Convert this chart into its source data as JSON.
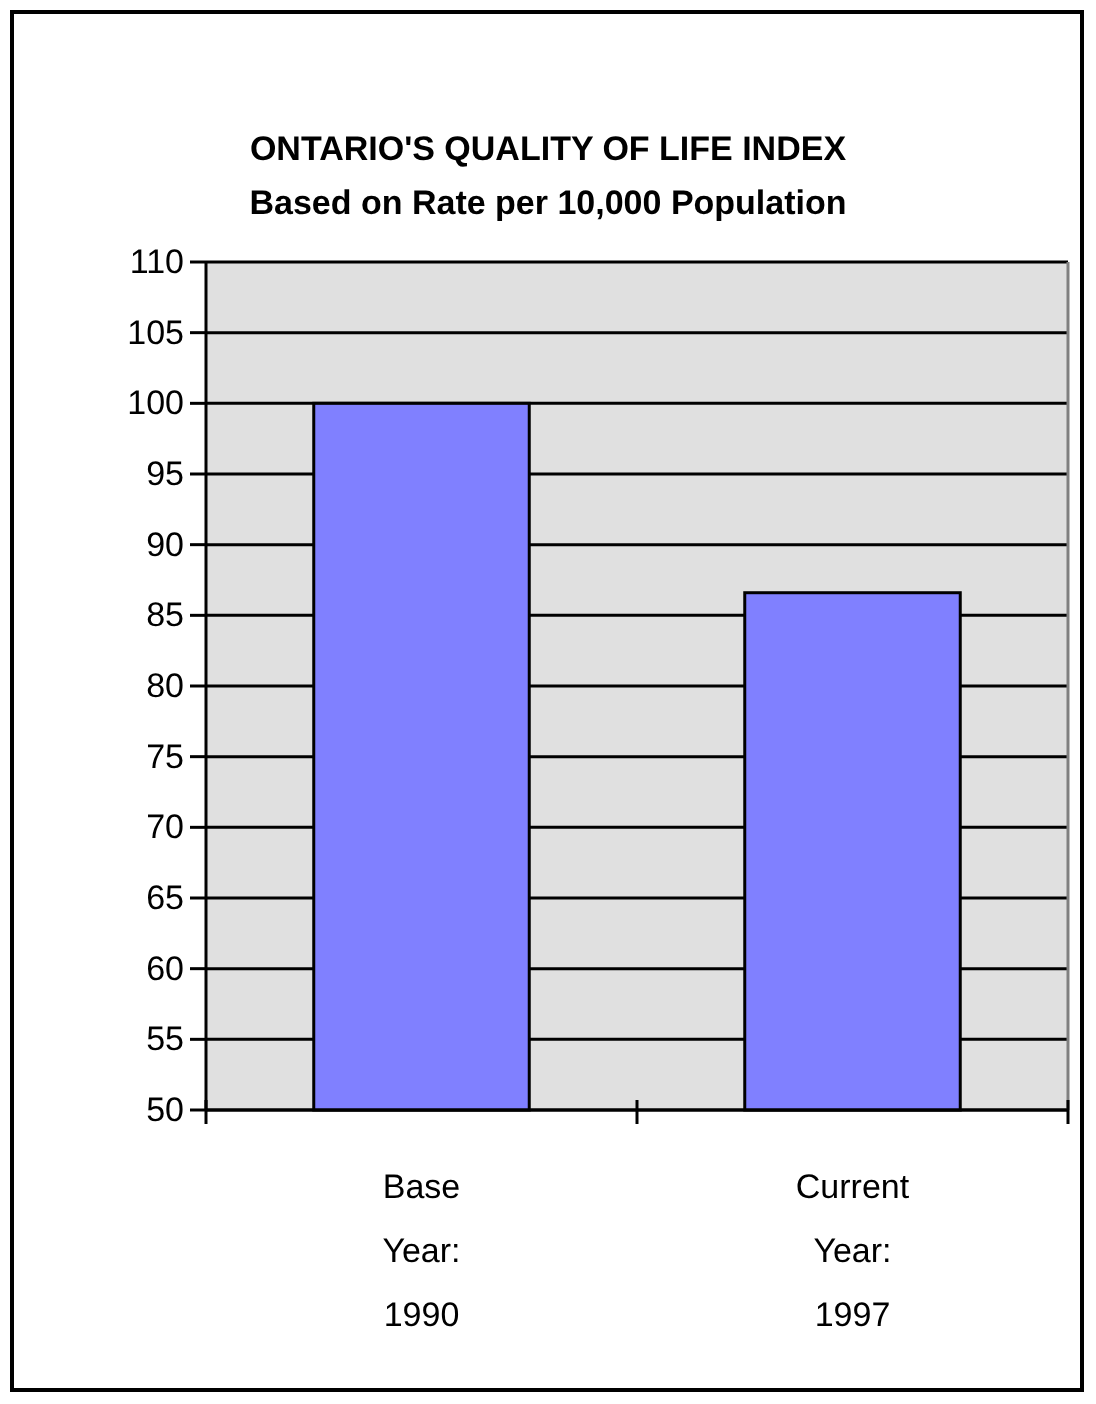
{
  "chart_data": {
    "type": "bar",
    "title": "ONTARIO'S QUALITY OF LIFE INDEX",
    "subtitle": "Based on Rate per 10,000 Population",
    "categories": [
      "Base Year: 1990",
      "Current Year: 1997"
    ],
    "values": [
      100,
      86.6
    ],
    "color": "#8080ff",
    "ylim": [
      50,
      110
    ],
    "yticks": [
      50,
      55,
      60,
      65,
      70,
      75,
      80,
      85,
      90,
      95,
      100,
      105,
      110
    ],
    "grid": "y"
  }
}
